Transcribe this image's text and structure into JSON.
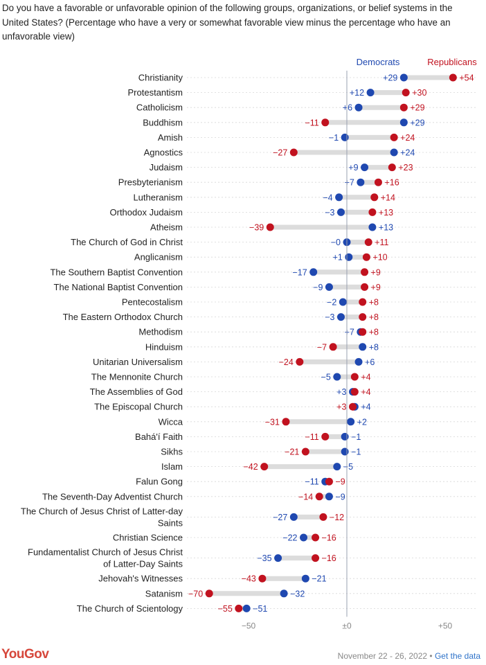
{
  "header": {
    "question": "Do you have a favorable or unfavorable opinion of the following groups, organizations, or belief systems in the United States? (Percentage who have a very or somewhat favorable view minus the percentage who have an unfavorable view)"
  },
  "footer": {
    "brand": "YouGov",
    "date": "November 22 - 26, 2022",
    "separator": " • ",
    "link_label": "Get the data"
  },
  "colors": {
    "democrats": "#1f48b0",
    "republicans": "#c1121f",
    "connector": "#dcdcdc",
    "axis": "#9aa0b0"
  },
  "chart_data": {
    "type": "dot",
    "title": "",
    "xlabel": "",
    "ylabel": "",
    "xlim": [
      -75,
      65
    ],
    "x_ticks": [
      -50,
      0,
      50
    ],
    "x_tick_labels": [
      "−50",
      "±0",
      "+50"
    ],
    "legend": [
      "Democrats",
      "Republicans"
    ],
    "series_names": {
      "democrats": "Democrats",
      "republicans": "Republicans"
    },
    "categories": [
      "Christianity",
      "Protestantism",
      "Catholicism",
      "Buddhism",
      "Amish",
      "Agnostics",
      "Judaism",
      "Presbyterianism",
      "Lutheranism",
      "Orthodox Judaism",
      "Atheism",
      "The Church of God in Christ",
      "Anglicanism",
      "The Southern Baptist Convention",
      "The National Baptist Convention",
      "Pentecostalism",
      "The Eastern Orthodox Church",
      "Methodism",
      "Hinduism",
      "Unitarian Universalism",
      "The Mennonite Church",
      "The Assemblies of God",
      "The Episcopal Church",
      "Wicca",
      "Bahá'í Faith",
      "Sikhs",
      "Islam",
      "Falun Gong",
      "The Seventh-Day Adventist Church",
      "The Church of Jesus Christ of Latter-day Saints",
      "Christian Science",
      "Fundamentalist Church of Jesus Christ of Latter-Day Saints",
      "Jehovah's Witnesses",
      "Satanism",
      "The Church of Scientology"
    ],
    "series": [
      {
        "name": "Democrats",
        "values": [
          29,
          12,
          6,
          29,
          -1,
          24,
          9,
          7,
          -4,
          -3,
          13,
          0,
          1,
          -17,
          -9,
          -2,
          -3,
          7,
          8,
          6,
          -5,
          3,
          4,
          2,
          -1,
          -1,
          -5,
          -11,
          -9,
          -27,
          -22,
          -35,
          -21,
          -32,
          -51
        ]
      },
      {
        "name": "Republicans",
        "values": [
          54,
          30,
          29,
          -11,
          24,
          -27,
          23,
          16,
          14,
          13,
          -39,
          11,
          10,
          9,
          9,
          8,
          8,
          8,
          -7,
          -24,
          4,
          4,
          3,
          -31,
          -11,
          -21,
          -42,
          -9,
          -14,
          -12,
          -16,
          -16,
          -43,
          -70,
          -55
        ]
      }
    ],
    "dem_labels": [
      "+29",
      "+12",
      "+6",
      "+29",
      "−1",
      "+24",
      "+9",
      "+7",
      "−4",
      "−3",
      "+13",
      "−0",
      "+1",
      "−17",
      "−9",
      "−2",
      "−3",
      "+7",
      "+8",
      "+6",
      "−5",
      "+3",
      "+4",
      "+2",
      "−1",
      "−1",
      "−5",
      "−11",
      "−9",
      "−27",
      "−22",
      "−35",
      "−21",
      "−32",
      "−51"
    ],
    "rep_labels": [
      "+54",
      "+30",
      "+29",
      "−11",
      "+24",
      "−27",
      "+23",
      "+16",
      "+14",
      "+13",
      "−39",
      "+11",
      "+10",
      "+9",
      "+9",
      "+8",
      "+8",
      "+8",
      "−7",
      "−24",
      "+4",
      "+4",
      "+3",
      "−31",
      "−11",
      "−21",
      "−42",
      "−9",
      "−14",
      "−12",
      "−16",
      "−16",
      "−43",
      "−70",
      "−55"
    ]
  }
}
